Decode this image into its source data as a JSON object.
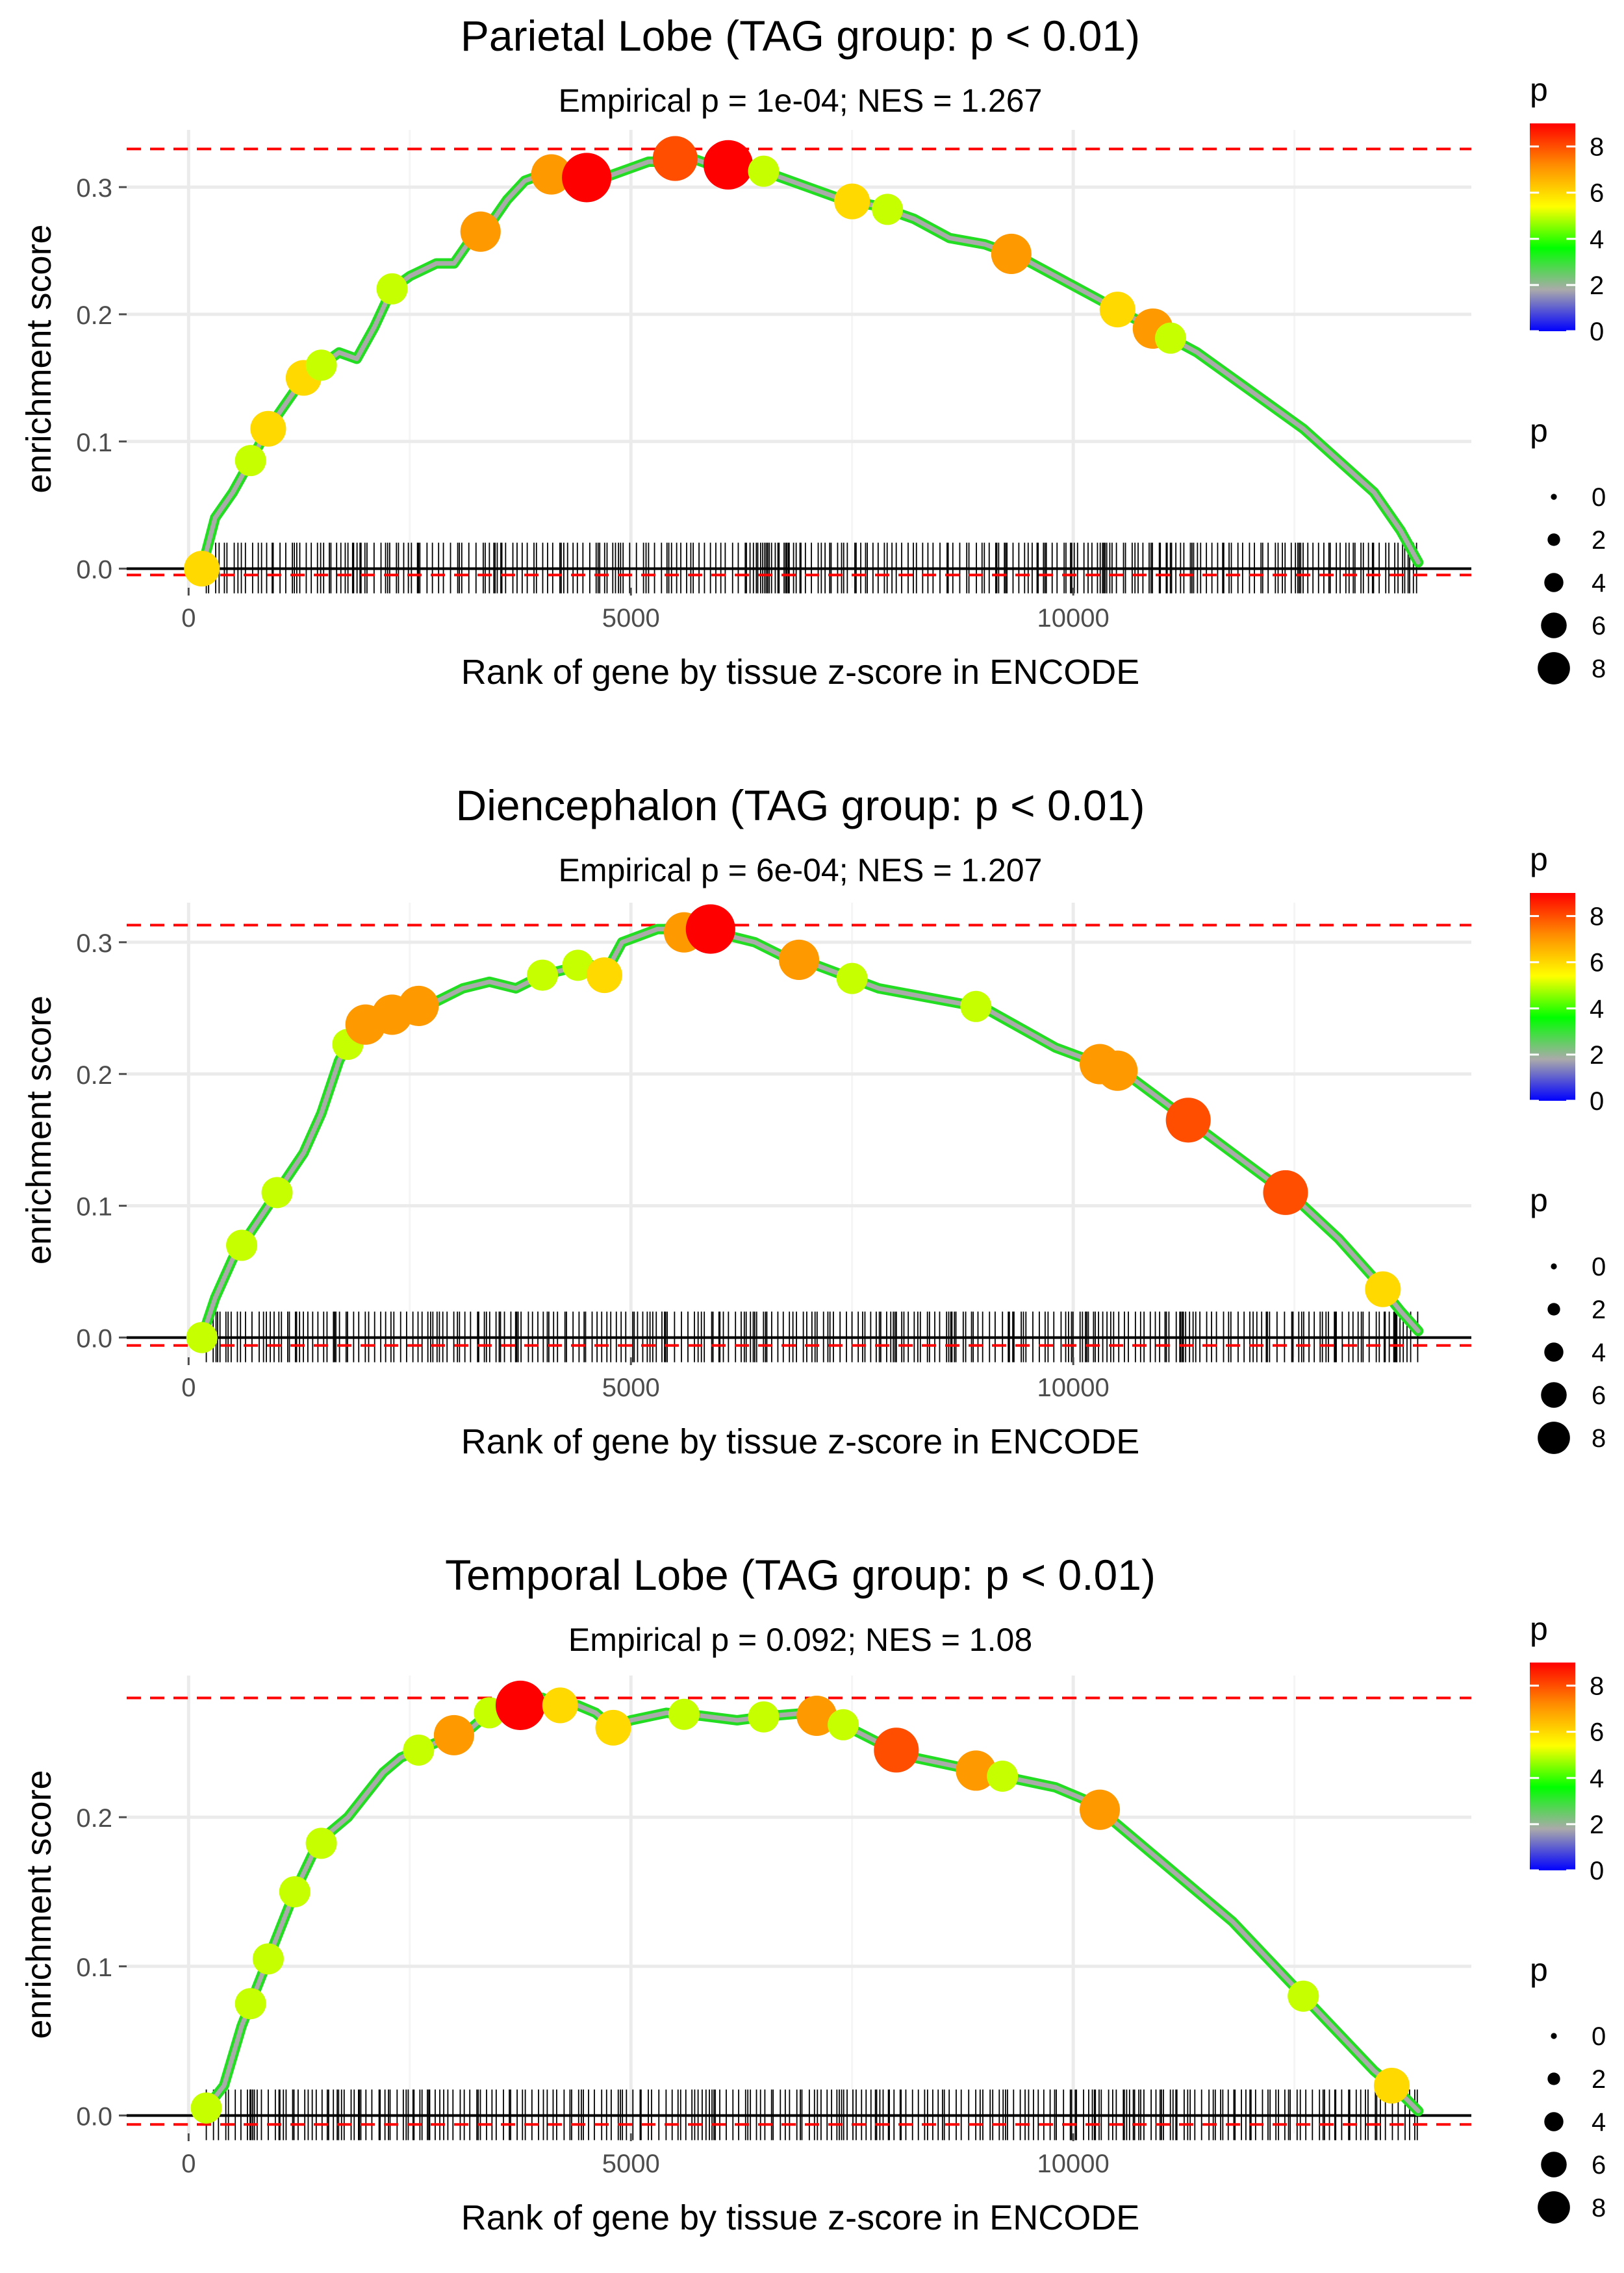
{
  "chart_data": [
    {
      "type": "line",
      "title": "Parietal Lobe (TAG group: p < 0.01)",
      "subtitle": "Empirical p = 1e-04; NES = 1.267",
      "xlabel": "Rank of gene by tissue z-score in ENCODE",
      "ylabel": "enrichment score",
      "xlim": [
        -700,
        14500
      ],
      "ylim": [
        -0.015,
        0.345
      ],
      "xticks": [
        0,
        5000,
        10000
      ],
      "xtick_labels": [
        "0",
        "5000",
        "10000"
      ],
      "yticks": [
        0.0,
        0.1,
        0.2,
        0.3
      ],
      "ytick_labels": [
        "0.0",
        "0.1",
        "0.2",
        "0.3"
      ],
      "hlines": {
        "max": 0.33,
        "min": -0.005,
        "zero": 0.0
      },
      "curve": {
        "x": [
          150,
          300,
          500,
          700,
          900,
          1100,
          1300,
          1500,
          1700,
          1900,
          2100,
          2300,
          2500,
          2800,
          3000,
          3200,
          3400,
          3600,
          3800,
          4000,
          4200,
          4400,
          4600,
          4800,
          5000,
          5200,
          5400,
          5600,
          5800,
          6000,
          6200,
          6600,
          7000,
          7400,
          7800,
          8200,
          8600,
          9000,
          9400,
          9800,
          10200,
          10600,
          11000,
          11400,
          11800,
          12200,
          12600,
          13000,
          13400,
          13700,
          13900
        ],
        "y": [
          0.0,
          0.04,
          0.06,
          0.085,
          0.11,
          0.13,
          0.15,
          0.16,
          0.17,
          0.165,
          0.19,
          0.22,
          0.23,
          0.24,
          0.24,
          0.26,
          0.27,
          0.29,
          0.305,
          0.31,
          0.31,
          0.31,
          0.305,
          0.31,
          0.315,
          0.32,
          0.32,
          0.325,
          0.32,
          0.315,
          0.32,
          0.31,
          0.3,
          0.29,
          0.285,
          0.275,
          0.26,
          0.255,
          0.245,
          0.23,
          0.215,
          0.2,
          0.185,
          0.17,
          0.15,
          0.13,
          0.11,
          0.085,
          0.06,
          0.03,
          0.005
        ]
      },
      "highlights": {
        "x": [
          150,
          700,
          900,
          1300,
          1500,
          2300,
          3300,
          4100,
          4500,
          5500,
          6100,
          6500,
          7500,
          7900,
          9300,
          10500,
          10900,
          11100
        ],
        "p": [
          6,
          5,
          6,
          6,
          5,
          5,
          7,
          7,
          9,
          8,
          9,
          5,
          6,
          5,
          7,
          6,
          7,
          5
        ]
      },
      "legend": {
        "color_title": "p",
        "color_ticks": [
          0,
          2,
          4,
          6,
          8
        ],
        "color_range": [
          0,
          9
        ],
        "color_stops": [
          "#0000ff",
          "#aaaaaa",
          "#00ff00",
          "#ffff00",
          "#ff8c00",
          "#ff0000"
        ],
        "size_title": "p",
        "size_values": [
          0,
          2,
          4,
          6,
          8
        ]
      },
      "rug_seed": 3
    },
    {
      "type": "line",
      "title": "Diencephalon (TAG group: p < 0.01)",
      "subtitle": "Empirical p = 6e-04; NES = 1.207",
      "xlabel": "Rank of gene by tissue z-score in ENCODE",
      "ylabel": "enrichment score",
      "xlim": [
        -700,
        14500
      ],
      "ylim": [
        -0.015,
        0.33
      ],
      "xticks": [
        0,
        5000,
        10000
      ],
      "xtick_labels": [
        "0",
        "5000",
        "10000"
      ],
      "yticks": [
        0.0,
        0.1,
        0.2,
        0.3
      ],
      "ytick_labels": [
        "0.0",
        "0.1",
        "0.2",
        "0.3"
      ],
      "hlines": {
        "max": 0.313,
        "min": -0.006,
        "zero": 0.0
      },
      "curve": {
        "x": [
          150,
          300,
          500,
          700,
          900,
          1100,
          1300,
          1500,
          1700,
          1900,
          2100,
          2300,
          2500,
          2800,
          3100,
          3400,
          3700,
          4000,
          4300,
          4500,
          4700,
          4900,
          5100,
          5300,
          5500,
          5700,
          5900,
          6100,
          6400,
          6700,
          7000,
          7400,
          7800,
          8200,
          8600,
          9000,
          9400,
          9800,
          10200,
          10600,
          11000,
          11400,
          11800,
          12200,
          12600,
          13000,
          13400,
          13700,
          13900
        ],
        "y": [
          0.0,
          0.03,
          0.06,
          0.08,
          0.1,
          0.12,
          0.14,
          0.17,
          0.21,
          0.235,
          0.24,
          0.245,
          0.25,
          0.255,
          0.265,
          0.27,
          0.265,
          0.275,
          0.28,
          0.285,
          0.275,
          0.3,
          0.305,
          0.31,
          0.31,
          0.305,
          0.31,
          0.305,
          0.3,
          0.29,
          0.285,
          0.275,
          0.265,
          0.26,
          0.255,
          0.25,
          0.235,
          0.22,
          0.21,
          0.2,
          0.18,
          0.16,
          0.14,
          0.12,
          0.1,
          0.075,
          0.045,
          0.02,
          0.005
        ]
      },
      "highlights": {
        "x": [
          150,
          600,
          1000,
          1800,
          2000,
          2300,
          2600,
          4000,
          4400,
          4700,
          5600,
          5900,
          6900,
          7500,
          8900,
          10300,
          10500,
          11300,
          12400,
          13500
        ],
        "p": [
          5,
          5,
          5,
          5,
          7,
          7,
          7,
          5,
          5,
          6,
          7,
          9,
          7,
          5,
          5,
          7,
          7,
          8,
          8,
          6
        ]
      },
      "legend": {
        "color_title": "p",
        "color_ticks": [
          0,
          2,
          4,
          6,
          8
        ],
        "color_range": [
          0,
          9
        ],
        "color_stops": [
          "#0000ff",
          "#aaaaaa",
          "#00ff00",
          "#ffff00",
          "#ff8c00",
          "#ff0000"
        ],
        "size_title": "p",
        "size_values": [
          0,
          2,
          4,
          6,
          8
        ]
      },
      "rug_seed": 11
    },
    {
      "type": "line",
      "title": "Temporal Lobe (TAG group: p < 0.01)",
      "subtitle": "Empirical p = 0.092; NES = 1.08",
      "xlabel": "Rank of gene by tissue z-score in ENCODE",
      "ylabel": "enrichment score",
      "xlim": [
        -700,
        14500
      ],
      "ylim": [
        -0.012,
        0.295
      ],
      "xticks": [
        0,
        5000,
        10000
      ],
      "xtick_labels": [
        "0",
        "5000",
        "10000"
      ],
      "yticks": [
        0.0,
        0.1,
        0.2
      ],
      "ytick_labels": [
        "0.0",
        "0.1",
        "0.2"
      ],
      "hlines": {
        "max": 0.28,
        "min": -0.006,
        "zero": 0.0
      },
      "curve": {
        "x": [
          200,
          400,
          600,
          800,
          1000,
          1200,
          1400,
          1600,
          1800,
          2000,
          2200,
          2400,
          2600,
          2800,
          3000,
          3200,
          3400,
          3600,
          3800,
          4000,
          4200,
          4400,
          4600,
          4800,
          5000,
          5400,
          5800,
          6200,
          6600,
          7000,
          7400,
          7800,
          8200,
          8600,
          9000,
          9400,
          9800,
          10200,
          10600,
          11000,
          11400,
          11800,
          12200,
          12600,
          13000,
          13400,
          13700,
          13900
        ],
        "y": [
          0.005,
          0.02,
          0.06,
          0.09,
          0.12,
          0.15,
          0.175,
          0.19,
          0.2,
          0.215,
          0.23,
          0.24,
          0.245,
          0.25,
          0.255,
          0.26,
          0.27,
          0.275,
          0.275,
          0.28,
          0.275,
          0.275,
          0.27,
          0.26,
          0.265,
          0.27,
          0.268,
          0.265,
          0.268,
          0.27,
          0.262,
          0.25,
          0.24,
          0.235,
          0.23,
          0.225,
          0.22,
          0.21,
          0.19,
          0.17,
          0.15,
          0.13,
          0.105,
          0.08,
          0.055,
          0.03,
          0.015,
          0.003
        ]
      },
      "highlights": {
        "x": [
          200,
          700,
          900,
          1200,
          1500,
          2600,
          3000,
          3400,
          3750,
          4200,
          4800,
          5600,
          6500,
          7100,
          7400,
          8000,
          8900,
          9200,
          10300,
          12600,
          13600
        ],
        "p": [
          5,
          5,
          5,
          5,
          5,
          5,
          7,
          5,
          9,
          6,
          6,
          5,
          5,
          7,
          5,
          8,
          7,
          5,
          7,
          5,
          6
        ]
      },
      "legend": {
        "color_title": "p",
        "color_ticks": [
          0,
          2,
          4,
          6,
          8
        ],
        "color_range": [
          0,
          9
        ],
        "color_stops": [
          "#0000ff",
          "#aaaaaa",
          "#00ff00",
          "#ffff00",
          "#ff8c00",
          "#ff0000"
        ],
        "size_title": "p",
        "size_values": [
          0,
          2,
          4,
          6,
          8
        ]
      },
      "rug_seed": 29
    }
  ]
}
